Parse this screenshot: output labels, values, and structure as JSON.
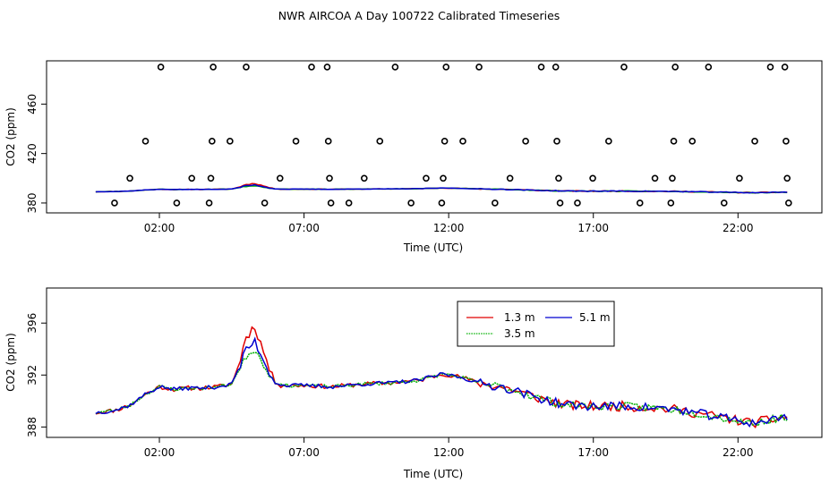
{
  "figure_title": "NWR AIRCOA A  Day 100722  Calibrated Timeseries",
  "colors": {
    "1.3 m": "#e00000",
    "3.5 m": "#00b000",
    "5.1 m": "#0000d0",
    "axis": "#000000"
  },
  "chart_data": [
    {
      "type": "scatter+line",
      "panel": "top",
      "xlabel": "Time (UTC)",
      "ylabel": "CO2 (ppm)",
      "xlim": [
        -1.9,
        24.9
      ],
      "ylim": [
        372,
        495
      ],
      "xticks": [
        2,
        7,
        12,
        17,
        22
      ],
      "xtick_labels": [
        "02:00",
        "07:00",
        "12:00",
        "17:00",
        "22:00"
      ],
      "yticks": [
        380,
        420,
        460
      ],
      "ytick_labels": [
        "380",
        "420",
        "460"
      ],
      "circle_levels": [
        380,
        400,
        430,
        490
      ],
      "calibration_points": [
        {
          "x": 0.45,
          "y": 380
        },
        {
          "x": 0.98,
          "y": 400
        },
        {
          "x": 1.52,
          "y": 430
        },
        {
          "x": 2.05,
          "y": 490
        },
        {
          "x": 2.6,
          "y": 380
        },
        {
          "x": 3.12,
          "y": 400
        },
        {
          "x": 3.72,
          "y": 380
        },
        {
          "x": 3.78,
          "y": 400
        },
        {
          "x": 3.82,
          "y": 430
        },
        {
          "x": 3.86,
          "y": 490
        },
        {
          "x": 4.44,
          "y": 430
        },
        {
          "x": 5.0,
          "y": 490
        },
        {
          "x": 5.64,
          "y": 380
        },
        {
          "x": 6.17,
          "y": 400
        },
        {
          "x": 6.72,
          "y": 430
        },
        {
          "x": 7.26,
          "y": 490
        },
        {
          "x": 7.8,
          "y": 490
        },
        {
          "x": 7.84,
          "y": 430
        },
        {
          "x": 7.88,
          "y": 400
        },
        {
          "x": 7.93,
          "y": 380
        },
        {
          "x": 8.55,
          "y": 380
        },
        {
          "x": 9.08,
          "y": 400
        },
        {
          "x": 9.62,
          "y": 430
        },
        {
          "x": 10.15,
          "y": 490
        },
        {
          "x": 10.7,
          "y": 380
        },
        {
          "x": 11.22,
          "y": 400
        },
        {
          "x": 11.76,
          "y": 380
        },
        {
          "x": 11.81,
          "y": 400
        },
        {
          "x": 11.86,
          "y": 430
        },
        {
          "x": 11.91,
          "y": 490
        },
        {
          "x": 12.49,
          "y": 430
        },
        {
          "x": 13.05,
          "y": 490
        },
        {
          "x": 13.6,
          "y": 380
        },
        {
          "x": 14.12,
          "y": 400
        },
        {
          "x": 14.66,
          "y": 430
        },
        {
          "x": 15.2,
          "y": 490
        },
        {
          "x": 15.7,
          "y": 490
        },
        {
          "x": 15.74,
          "y": 430
        },
        {
          "x": 15.8,
          "y": 400
        },
        {
          "x": 15.85,
          "y": 380
        },
        {
          "x": 16.45,
          "y": 380
        },
        {
          "x": 16.98,
          "y": 400
        },
        {
          "x": 17.53,
          "y": 430
        },
        {
          "x": 18.06,
          "y": 490
        },
        {
          "x": 18.61,
          "y": 380
        },
        {
          "x": 19.13,
          "y": 400
        },
        {
          "x": 19.68,
          "y": 380
        },
        {
          "x": 19.73,
          "y": 400
        },
        {
          "x": 19.78,
          "y": 430
        },
        {
          "x": 19.83,
          "y": 490
        },
        {
          "x": 20.42,
          "y": 430
        },
        {
          "x": 20.98,
          "y": 490
        },
        {
          "x": 21.52,
          "y": 380
        },
        {
          "x": 22.05,
          "y": 400
        },
        {
          "x": 22.58,
          "y": 430
        },
        {
          "x": 23.12,
          "y": 490
        },
        {
          "x": 23.62,
          "y": 490
        },
        {
          "x": 23.66,
          "y": 430
        },
        {
          "x": 23.7,
          "y": 400
        },
        {
          "x": 23.75,
          "y": 380
        }
      ]
    },
    {
      "type": "line",
      "panel": "bottom",
      "xlabel": "Time (UTC)",
      "ylabel": "CO2 (ppm)",
      "xlim": [
        -1.9,
        24.9
      ],
      "ylim": [
        387.2,
        398.7
      ],
      "xticks": [
        2,
        7,
        12,
        17,
        22
      ],
      "xtick_labels": [
        "02:00",
        "07:00",
        "12:00",
        "17:00",
        "22:00"
      ],
      "yticks": [
        388,
        392,
        396
      ],
      "ytick_labels": [
        "388",
        "392",
        "396"
      ],
      "legend": {
        "placement": "top-center",
        "entries": [
          "1.3 m",
          "5.1 m",
          "3.5 m"
        ]
      },
      "series": [
        {
          "name": "1.3 m",
          "color": "#e00000",
          "noise_amp": 0.38,
          "seed": 11,
          "spike_scale": 1.0
        },
        {
          "name": "3.5 m",
          "color": "#00b000",
          "noise_amp": 0.3,
          "seed": 23,
          "spike_scale": 0.55
        },
        {
          "name": "5.1 m",
          "color": "#0000d0",
          "noise_amp": 0.34,
          "seed": 37,
          "spike_scale": 0.7
        }
      ],
      "baseline_x": [
        -0.2,
        0.5,
        1.0,
        1.5,
        2.0,
        2.5,
        3.0,
        3.5,
        4.0,
        4.5,
        4.8,
        5.0,
        5.3,
        5.6,
        5.9,
        6.2,
        7.0,
        8.0,
        9.0,
        10.0,
        11.0,
        11.8,
        12.5,
        13.0,
        14.0,
        15.0,
        16.0,
        17.0,
        18.0,
        19.0,
        20.0,
        21.0,
        22.0,
        22.5,
        23.0,
        23.7
      ],
      "baseline_y": [
        389.1,
        389.3,
        389.7,
        390.5,
        391.1,
        390.9,
        391.0,
        391.0,
        391.1,
        391.3,
        393.0,
        394.5,
        395.2,
        393.5,
        391.8,
        391.2,
        391.2,
        391.1,
        391.3,
        391.4,
        391.6,
        392.1,
        391.8,
        391.4,
        391.0,
        390.3,
        389.7,
        389.6,
        389.6,
        389.5,
        389.3,
        388.9,
        388.5,
        388.3,
        388.5,
        388.8
      ]
    }
  ]
}
